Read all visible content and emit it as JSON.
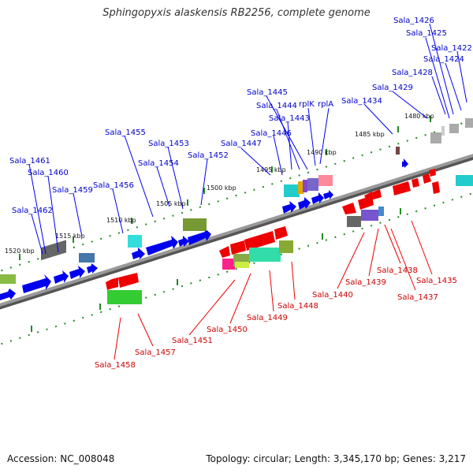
{
  "title": "Sphingopyxis alaskensis RB2256, complete genome",
  "accession": "Accession: NC_008048",
  "summary": "Topology: circular; Length: 3,345,170 bp; Genes: 3,217",
  "colors": {
    "forward": "#0000ee",
    "reverse": "#ee0000",
    "axis": "#888888",
    "tick": "#228B22"
  },
  "kbp_marks": [
    {
      "label": "1485 kbp"
    },
    {
      "label": "1490 kbp"
    },
    {
      "label": "1495 kbp"
    },
    {
      "label": "1500 kbp"
    },
    {
      "label": "1505 kbp"
    },
    {
      "label": "1510 kbp"
    },
    {
      "label": "1515 kbp"
    },
    {
      "label": "1520 kbp"
    },
    {
      "label": "1480 kbp"
    }
  ],
  "forward_labels": [
    "Sala_1426",
    "Sala_1425",
    "Sala_1422",
    "Sala_1424",
    "Sala_1428",
    "Sala_1429",
    "Sala_1434",
    "Sala_1445",
    "Sala_1444",
    "rplK",
    "rplA",
    "Sala_1443",
    "Sala_1446",
    "Sala_1447",
    "Sala_1455",
    "Sala_1453",
    "Sala_1452",
    "Sala_1454",
    "Sala_1461",
    "Sala_1460",
    "Sala_1459",
    "Sala_1456",
    "Sala_1462"
  ],
  "reverse_labels": [
    "Sala_1435",
    "Sala_1438",
    "Sala_1437",
    "Sala_1439",
    "Sala_1440",
    "Sala_1448",
    "Sala_1449",
    "Sala_1450",
    "Sala_1451",
    "Sala_1457",
    "Sala_1458"
  ]
}
